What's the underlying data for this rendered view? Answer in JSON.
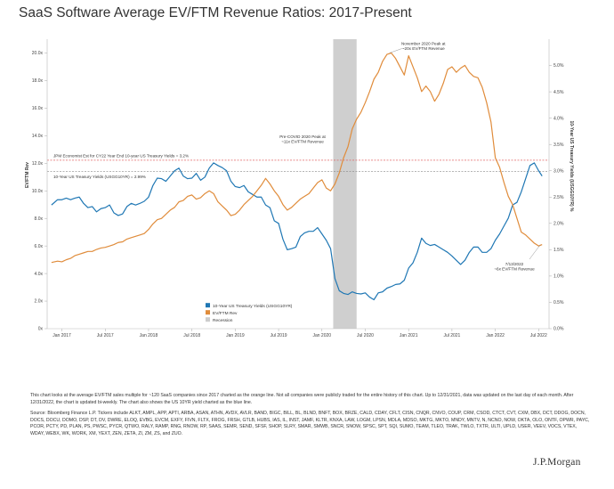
{
  "title": "SaaS Software Average EV/FTM Revenue Ratios: 2017-Present",
  "chart_data": {
    "type": "line",
    "xlabel": "",
    "ylabel_left": "EV/FTM Rev",
    "ylabel_right": "10-Year US Treasury Yields (USGG10YR) %",
    "ylim_left": [
      0,
      21
    ],
    "ylim_right": [
      0,
      5.5
    ],
    "left_ticks": [
      "0x",
      "2.0x",
      "4.0x",
      "6.0x",
      "8.0x",
      "10.0x",
      "12.0x",
      "14.0x",
      "16.0x",
      "18.0x",
      "20.0x"
    ],
    "right_ticks": [
      "0.0%",
      "0.5%",
      "1.0%",
      "1.5%",
      "2.0%",
      "2.5%",
      "3.0%",
      "3.5%",
      "4.0%",
      "4.5%",
      "5.0%"
    ],
    "x_ticks": [
      {
        "label": "Jan 2017",
        "t": 2017.0
      },
      {
        "label": "Jul 2017",
        "t": 2017.5
      },
      {
        "label": "Jan 2018",
        "t": 2018.0
      },
      {
        "label": "Jul 2018",
        "t": 2018.5
      },
      {
        "label": "Jan 2019",
        "t": 2019.0
      },
      {
        "label": "Jul 2019",
        "t": 2019.5
      },
      {
        "label": "Jan 2020",
        "t": 2020.0
      },
      {
        "label": "Jul 2020",
        "t": 2020.5
      },
      {
        "label": "Jan 2021",
        "t": 2021.0
      },
      {
        "label": "Jul 2021",
        "t": 2021.5
      },
      {
        "label": "Jan 2022",
        "t": 2022.0
      },
      {
        "label": "Jul 2022",
        "t": 2022.5
      }
    ],
    "xlim": [
      2016.83,
      2022.62
    ],
    "recession": {
      "label": "Recession",
      "start": 2020.13,
      "end": 2020.4
    },
    "hlines": [
      {
        "label": "JPM Economist Est for CY22 Year End 10-year US Treasury Yields = 3.2%",
        "value": 3.2,
        "color": "#e06666"
      },
      {
        "label": "10-Year US Treasury Yields (USGG10YR) = 2.99%",
        "value": 2.99,
        "color": "#888888"
      }
    ],
    "annotations": [
      {
        "text_lines": [
          "November 2020 Peak at",
          "~20x EV/FTM Revenue"
        ]
      },
      {
        "text_lines": [
          "Pre-COVID 2020 Peak at",
          "~11x EV/FTM Revenue"
        ]
      },
      {
        "text_lines": [
          "7/13/2022",
          "~6x EV/FTM Revenue"
        ]
      }
    ],
    "series": [
      {
        "name": "10-Year US Treasury Yields (USGG10YR)",
        "axis": "right",
        "color": "#1f77b4",
        "x": [
          2016.88,
          2016.95,
          2017.0,
          2017.05,
          2017.1,
          2017.15,
          2017.2,
          2017.25,
          2017.3,
          2017.35,
          2017.4,
          2017.45,
          2017.5,
          2017.55,
          2017.6,
          2017.65,
          2017.7,
          2017.75,
          2017.8,
          2017.85,
          2017.9,
          2017.95,
          2018.0,
          2018.05,
          2018.1,
          2018.15,
          2018.2,
          2018.25,
          2018.3,
          2018.35,
          2018.4,
          2018.45,
          2018.5,
          2018.55,
          2018.6,
          2018.65,
          2018.7,
          2018.75,
          2018.8,
          2018.85,
          2018.9,
          2018.95,
          2019.0,
          2019.05,
          2019.1,
          2019.15,
          2019.2,
          2019.25,
          2019.3,
          2019.35,
          2019.4,
          2019.45,
          2019.5,
          2019.55,
          2019.6,
          2019.65,
          2019.7,
          2019.75,
          2019.8,
          2019.85,
          2019.9,
          2019.95,
          2020.0,
          2020.05,
          2020.1,
          2020.15,
          2020.2,
          2020.25,
          2020.3,
          2020.35,
          2020.4,
          2020.45,
          2020.5,
          2020.55,
          2020.6,
          2020.65,
          2020.7,
          2020.75,
          2020.8,
          2020.85,
          2020.9,
          2020.95,
          2021.0,
          2021.05,
          2021.1,
          2021.15,
          2021.2,
          2021.25,
          2021.3,
          2021.35,
          2021.4,
          2021.45,
          2021.5,
          2021.55,
          2021.6,
          2021.65,
          2021.7,
          2021.75,
          2021.8,
          2021.85,
          2021.9,
          2021.95,
          2022.0,
          2022.05,
          2022.1,
          2022.15,
          2022.2,
          2022.25,
          2022.3,
          2022.35,
          2022.4,
          2022.45,
          2022.5,
          2022.54
        ],
        "values": [
          2.35,
          2.45,
          2.45,
          2.48,
          2.45,
          2.48,
          2.5,
          2.38,
          2.3,
          2.32,
          2.22,
          2.28,
          2.3,
          2.35,
          2.2,
          2.15,
          2.18,
          2.32,
          2.38,
          2.35,
          2.38,
          2.42,
          2.5,
          2.72,
          2.86,
          2.85,
          2.8,
          2.9,
          3.0,
          3.05,
          2.9,
          2.85,
          2.86,
          2.95,
          2.82,
          2.88,
          3.05,
          3.15,
          3.1,
          3.06,
          3.0,
          2.8,
          2.7,
          2.68,
          2.72,
          2.6,
          2.55,
          2.5,
          2.5,
          2.35,
          2.3,
          2.05,
          2.0,
          1.7,
          1.5,
          1.52,
          1.55,
          1.75,
          1.82,
          1.85,
          1.85,
          1.92,
          1.8,
          1.68,
          1.52,
          0.95,
          0.72,
          0.67,
          0.65,
          0.7,
          0.67,
          0.66,
          0.68,
          0.6,
          0.55,
          0.68,
          0.7,
          0.77,
          0.8,
          0.84,
          0.85,
          0.92,
          1.15,
          1.25,
          1.45,
          1.72,
          1.62,
          1.58,
          1.6,
          1.55,
          1.5,
          1.45,
          1.38,
          1.3,
          1.22,
          1.3,
          1.45,
          1.55,
          1.55,
          1.45,
          1.45,
          1.52,
          1.68,
          1.8,
          1.95,
          2.1,
          2.35,
          2.4,
          2.6,
          2.85,
          3.1,
          3.15,
          3.0,
          2.9
        ]
      },
      {
        "name": "EV/FTM Rev",
        "axis": "left",
        "color": "#e08c3b",
        "x": [
          2016.88,
          2016.95,
          2017.0,
          2017.05,
          2017.1,
          2017.15,
          2017.2,
          2017.25,
          2017.3,
          2017.35,
          2017.4,
          2017.45,
          2017.5,
          2017.55,
          2017.6,
          2017.65,
          2017.7,
          2017.75,
          2017.8,
          2017.85,
          2017.9,
          2017.95,
          2018.0,
          2018.05,
          2018.1,
          2018.15,
          2018.2,
          2018.25,
          2018.3,
          2018.35,
          2018.4,
          2018.45,
          2018.5,
          2018.55,
          2018.6,
          2018.65,
          2018.7,
          2018.75,
          2018.8,
          2018.85,
          2018.9,
          2018.95,
          2019.0,
          2019.05,
          2019.1,
          2019.15,
          2019.2,
          2019.25,
          2019.3,
          2019.35,
          2019.4,
          2019.45,
          2019.5,
          2019.55,
          2019.6,
          2019.65,
          2019.7,
          2019.75,
          2019.8,
          2019.85,
          2019.9,
          2019.95,
          2020.0,
          2020.05,
          2020.1,
          2020.15,
          2020.2,
          2020.25,
          2020.3,
          2020.35,
          2020.4,
          2020.45,
          2020.5,
          2020.55,
          2020.6,
          2020.65,
          2020.7,
          2020.75,
          2020.8,
          2020.85,
          2020.9,
          2020.95,
          2021.0,
          2021.05,
          2021.1,
          2021.15,
          2021.2,
          2021.25,
          2021.3,
          2021.35,
          2021.4,
          2021.45,
          2021.5,
          2021.55,
          2021.6,
          2021.65,
          2021.7,
          2021.75,
          2021.8,
          2021.85,
          2021.9,
          2021.95,
          2022.0,
          2022.05,
          2022.1,
          2022.15,
          2022.2,
          2022.25,
          2022.3,
          2022.35,
          2022.4,
          2022.45,
          2022.5,
          2022.54
        ],
        "values": [
          4.8,
          4.9,
          4.85,
          5.0,
          5.1,
          5.3,
          5.4,
          5.5,
          5.6,
          5.6,
          5.75,
          5.85,
          5.9,
          6.0,
          6.1,
          6.25,
          6.3,
          6.5,
          6.6,
          6.7,
          6.8,
          6.9,
          7.2,
          7.6,
          7.9,
          8.0,
          8.3,
          8.6,
          8.8,
          9.2,
          9.3,
          9.6,
          9.7,
          9.4,
          9.5,
          9.8,
          10.0,
          9.8,
          9.2,
          8.9,
          8.6,
          8.2,
          8.3,
          8.6,
          9.0,
          9.3,
          9.6,
          10.0,
          10.4,
          10.9,
          10.5,
          10.0,
          9.6,
          9.0,
          8.6,
          8.8,
          9.1,
          9.4,
          9.6,
          9.8,
          10.2,
          10.6,
          10.8,
          10.2,
          10.0,
          10.5,
          11.3,
          12.4,
          13.2,
          14.5,
          15.2,
          15.7,
          16.4,
          17.2,
          18.1,
          18.6,
          19.4,
          19.9,
          20.0,
          19.6,
          19.0,
          18.4,
          19.8,
          19.0,
          18.2,
          17.2,
          17.6,
          17.2,
          16.5,
          17.0,
          17.8,
          18.8,
          19.0,
          18.6,
          18.9,
          19.1,
          18.6,
          18.3,
          18.2,
          17.5,
          16.4,
          15.0,
          12.4,
          11.7,
          10.6,
          9.6,
          9.0,
          8.0,
          7.0,
          6.8,
          6.5,
          6.2,
          6.0,
          6.1
        ]
      }
    ]
  },
  "legend": [
    {
      "label": "10-Year US Treasury Yields (USGG10YR)",
      "color": "#1f77b4"
    },
    {
      "label": "EV/FTM Rev",
      "color": "#e08c3b"
    },
    {
      "label": "Recession",
      "color": "#cccccc"
    }
  ],
  "notes": {
    "paragraph1": "This chart looks at the average EV/FTM sales multiple for ~120 SaaS companies since 2017 charted as the orange line. Not all companies were publicly traded for the entire history of this chart. Up to 12/31/2021, data was updated on the last day of each month. After 12/31/2022, the chart is updated bi-weekly. The chart also shows the US 10YR yield charted as the blue line.",
    "paragraph2": "Source: Bloomberg Finance L.P. Tickers include ALKT, AMPL, APP, APTI, ARBA, ASAN, ATHN, AVDX, AVLR, BAND, BIGC, BILL, BL, BLND, BNFT, BOX, BRZE, CALD, CDAY, CFLT, CISN, CNQR, CNVO, COUP, CRM, CSOD, CTCT, CVT, CXM, DBX, DCT, DDOG, DOCN, DOCS, DOCU, DOMO, DSP, DT, DV, DWRE, ELOQ, EVBG, EVCM, EXFY, FIVN, FLTX, FROG, FRSH, GTLB, HUBS, IAS, IL, INST, JAMF, KLTR, KNXA, LAW, LOGM, LPSN, MDLA, MDSO, MKTG, MKTO, MNDY, MNTV, N, NCNO, NOW, OKTA, OLO, ONTF, OPWR, PAYC, PCOR, PCTY, PD, PLAN, PS, PWSC, PYCR, QTWO, RALY, RAMP, RNG, RNOW, RP, SAAS, SEMR, SEND, SFSF, SHOP, SLRY, SMAR, SMWB, SNCR, SNOW, SPSC, SPT, SQI, SUMO, TEAM, TLEO, TRAK, TWLO, TXTR, ULTI, UPLD, USER, VEEV, VOCS, VTEX, WDAY, WEBX, WK, WORK, XM, YEXT, ZEN, ZETA, ZI, ZM, ZS, and ZUO."
  },
  "brand": "J.P.Morgan"
}
